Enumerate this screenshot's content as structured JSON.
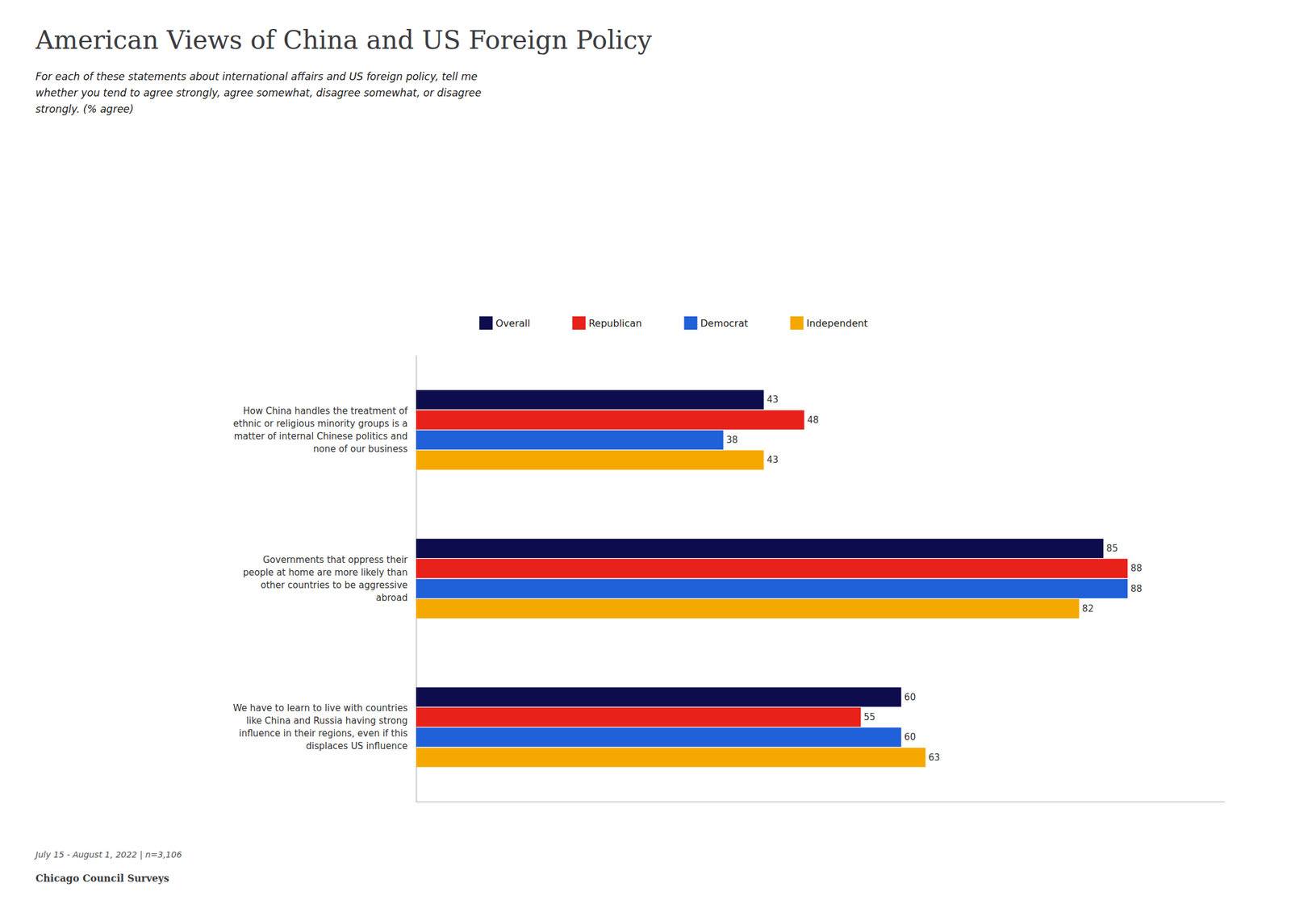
{
  "chart_data": {
    "type": "bar",
    "orientation": "horizontal",
    "title": "American Views of China and US Foreign Policy",
    "subtitle": "For each of these statements about international affairs and US foreign policy, tell me\nwhether you tend to agree strongly, agree somewhat, disagree somewhat, or disagree\nstrongly. (% agree)",
    "annotations": [
      "July 15 - August 1, 2022 | n=3,106",
      "Chicago Council Surveys"
    ],
    "categories": [
      "How China handles the treatment of\nethnic or religious minority groups is a\nmatter of internal Chinese politics and\nnone of our business",
      "Governments that oppress their\npeople at home are more likely than\nother countries to be aggressive\nabroad",
      "We have to learn to live with countries\nlike China and Russia having strong\ninfluence in their regions, even if this\ndisplaces US influence"
    ],
    "series": [
      {
        "name": "Overall",
        "color": "#0d0d4d",
        "values": [
          43,
          85,
          60
        ]
      },
      {
        "name": "Republican",
        "color": "#e8211a",
        "values": [
          48,
          88,
          55
        ]
      },
      {
        "name": "Democrat",
        "color": "#2060d8",
        "values": [
          38,
          88,
          60
        ]
      },
      {
        "name": "Independent",
        "color": "#f5a800",
        "values": [
          43,
          82,
          63
        ]
      }
    ],
    "xlim": [
      0,
      100
    ],
    "tick_labels": false,
    "grid": false,
    "legend": "top",
    "data_labels": true
  }
}
